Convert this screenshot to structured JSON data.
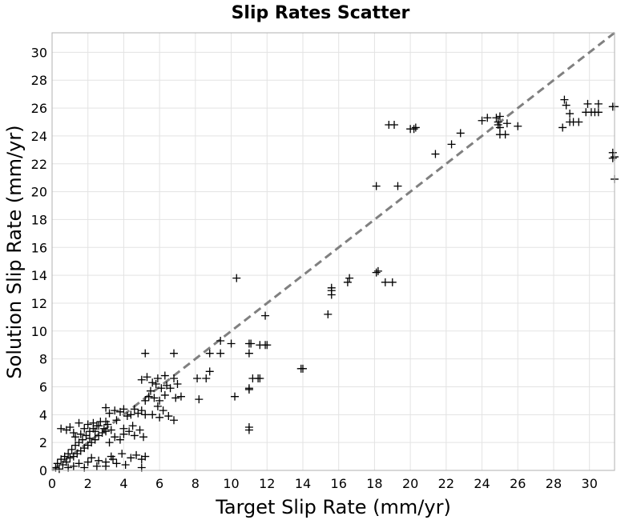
{
  "chart_data": {
    "type": "scatter",
    "title": "Slip Rates Scatter",
    "xlabel": "Target Slip Rate (mm/yr)",
    "ylabel": "Solution Slip Rate (mm/yr)",
    "xlim": [
      0,
      31.4
    ],
    "ylim": [
      0,
      31.4
    ],
    "xticks": [
      "0",
      "2",
      "4",
      "6",
      "8",
      "10",
      "12",
      "14",
      "16",
      "18",
      "20",
      "22",
      "24",
      "26",
      "28",
      "30"
    ],
    "yticks": [
      "0",
      "2",
      "4",
      "6",
      "8",
      "10",
      "12",
      "14",
      "16",
      "18",
      "20",
      "22",
      "24",
      "26",
      "28",
      "30"
    ],
    "grid": true,
    "reference_line": {
      "style": "dashed",
      "color": "#808080",
      "from": [
        0,
        0
      ],
      "to": [
        31.4,
        31.4
      ]
    },
    "marker": "+",
    "marker_color": "#000000",
    "points": [
      [
        0.2,
        0.2
      ],
      [
        0.3,
        0.5
      ],
      [
        0.4,
        0.1
      ],
      [
        0.5,
        0.8
      ],
      [
        0.6,
        0.4
      ],
      [
        0.7,
        1.0
      ],
      [
        0.8,
        0.6
      ],
      [
        0.9,
        1.2
      ],
      [
        1.0,
        0.9
      ],
      [
        1.1,
        1.5
      ],
      [
        1.2,
        1.0
      ],
      [
        1.3,
        1.8
      ],
      [
        1.4,
        1.2
      ],
      [
        1.5,
        2.0
      ],
      [
        1.6,
        1.4
      ],
      [
        1.7,
        2.2
      ],
      [
        1.8,
        1.6
      ],
      [
        1.9,
        2.5
      ],
      [
        2.0,
        1.8
      ],
      [
        2.1,
        2.8
      ],
      [
        2.2,
        2.0
      ],
      [
        2.3,
        3.0
      ],
      [
        2.4,
        2.2
      ],
      [
        2.5,
        3.2
      ],
      [
        2.6,
        2.5
      ],
      [
        2.7,
        3.5
      ],
      [
        2.8,
        2.7
      ],
      [
        2.9,
        3.0
      ],
      [
        3.0,
        2.8
      ],
      [
        3.1,
        3.3
      ],
      [
        0.5,
        3.0
      ],
      [
        0.8,
        2.9
      ],
      [
        1.0,
        3.1
      ],
      [
        1.2,
        2.7
      ],
      [
        1.5,
        3.4
      ],
      [
        1.8,
        3.0
      ],
      [
        2.0,
        3.3
      ],
      [
        2.3,
        3.4
      ],
      [
        2.6,
        3.2
      ],
      [
        3.0,
        4.5
      ],
      [
        3.2,
        4.1
      ],
      [
        3.5,
        4.3
      ],
      [
        3.8,
        4.2
      ],
      [
        4.0,
        4.4
      ],
      [
        4.2,
        3.9
      ],
      [
        4.4,
        4.0
      ],
      [
        4.6,
        4.4
      ],
      [
        4.8,
        4.1
      ],
      [
        5.0,
        4.3
      ],
      [
        5.2,
        4.0
      ],
      [
        3.0,
        0.6
      ],
      [
        3.3,
        1.0
      ],
      [
        3.6,
        0.5
      ],
      [
        3.9,
        1.2
      ],
      [
        4.1,
        0.4
      ],
      [
        4.4,
        0.9
      ],
      [
        4.7,
        1.1
      ],
      [
        5.0,
        0.8
      ],
      [
        5.2,
        1.0
      ],
      [
        5.0,
        0.2
      ],
      [
        2.5,
        0.3
      ],
      [
        2.0,
        0.6
      ],
      [
        1.8,
        0.2
      ],
      [
        2.2,
        0.9
      ],
      [
        2.6,
        0.7
      ],
      [
        3.0,
        0.3
      ],
      [
        3.4,
        0.8
      ],
      [
        1.5,
        0.5
      ],
      [
        1.2,
        0.3
      ],
      [
        0.9,
        0.2
      ],
      [
        3.2,
        2.0
      ],
      [
        3.5,
        2.4
      ],
      [
        3.8,
        2.2
      ],
      [
        4.0,
        2.6
      ],
      [
        4.3,
        2.8
      ],
      [
        4.6,
        2.5
      ],
      [
        4.9,
        2.9
      ],
      [
        5.1,
        2.4
      ],
      [
        4.0,
        3.0
      ],
      [
        4.5,
        3.2
      ],
      [
        5.0,
        6.5
      ],
      [
        5.3,
        6.7
      ],
      [
        5.6,
        6.3
      ],
      [
        5.9,
        6.6
      ],
      [
        6.3,
        6.8
      ],
      [
        5.5,
        5.7
      ],
      [
        5.8,
        6.2
      ],
      [
        6.1,
        5.9
      ],
      [
        6.4,
        6.1
      ],
      [
        5.2,
        5.0
      ],
      [
        5.4,
        5.3
      ],
      [
        5.7,
        5.2
      ],
      [
        6.0,
        5.0
      ],
      [
        6.3,
        5.4
      ],
      [
        5.9,
        4.6
      ],
      [
        6.2,
        4.3
      ],
      [
        5.6,
        4.0
      ],
      [
        6.5,
        3.9
      ],
      [
        6.8,
        3.6
      ],
      [
        6.0,
        3.8
      ],
      [
        5.2,
        8.4
      ],
      [
        6.8,
        8.4
      ],
      [
        6.8,
        6.6
      ],
      [
        6.6,
        5.9
      ],
      [
        6.9,
        5.2
      ],
      [
        7.0,
        6.2
      ],
      [
        7.2,
        5.3
      ],
      [
        8.1,
        6.6
      ],
      [
        8.2,
        5.1
      ],
      [
        8.6,
        6.6
      ],
      [
        8.8,
        7.1
      ],
      [
        8.8,
        8.4
      ],
      [
        9.4,
        8.4
      ],
      [
        9.4,
        9.3
      ],
      [
        10.0,
        9.1
      ],
      [
        10.2,
        5.3
      ],
      [
        10.3,
        13.8
      ],
      [
        11.0,
        9.1
      ],
      [
        11.0,
        8.4
      ],
      [
        11.1,
        9.1
      ],
      [
        11.0,
        5.9
      ],
      [
        11.0,
        5.8
      ],
      [
        11.0,
        3.1
      ],
      [
        11.0,
        2.9
      ],
      [
        11.2,
        6.6
      ],
      [
        11.5,
        6.6
      ],
      [
        11.6,
        6.6
      ],
      [
        11.6,
        9.0
      ],
      [
        11.9,
        9.0
      ],
      [
        11.9,
        11.1
      ],
      [
        12.0,
        9.0
      ],
      [
        13.9,
        7.3
      ],
      [
        14.0,
        7.3
      ],
      [
        15.4,
        11.2
      ],
      [
        15.6,
        12.6
      ],
      [
        15.6,
        12.9
      ],
      [
        15.6,
        13.1
      ],
      [
        16.5,
        13.5
      ],
      [
        16.6,
        13.8
      ],
      [
        18.1,
        14.2
      ],
      [
        18.2,
        14.3
      ],
      [
        18.1,
        20.4
      ],
      [
        18.6,
        13.5
      ],
      [
        18.8,
        24.8
      ],
      [
        19.0,
        13.5
      ],
      [
        19.1,
        24.8
      ],
      [
        19.3,
        20.4
      ],
      [
        20.0,
        24.5
      ],
      [
        20.2,
        24.5
      ],
      [
        20.3,
        24.6
      ],
      [
        21.4,
        22.7
      ],
      [
        22.3,
        23.4
      ],
      [
        22.8,
        24.2
      ],
      [
        24.0,
        25.1
      ],
      [
        24.3,
        25.3
      ],
      [
        24.8,
        25.3
      ],
      [
        24.9,
        24.8
      ],
      [
        25.0,
        24.6
      ],
      [
        24.9,
        25.0
      ],
      [
        25.0,
        24.1
      ],
      [
        25.0,
        25.4
      ],
      [
        25.3,
        24.1
      ],
      [
        25.4,
        24.9
      ],
      [
        26.0,
        24.7
      ],
      [
        28.5,
        24.6
      ],
      [
        28.6,
        26.6
      ],
      [
        28.7,
        26.2
      ],
      [
        28.9,
        25.6
      ],
      [
        28.9,
        25.0
      ],
      [
        29.1,
        25.0
      ],
      [
        29.4,
        25.0
      ],
      [
        29.8,
        25.7
      ],
      [
        29.9,
        26.3
      ],
      [
        30.1,
        25.7
      ],
      [
        30.3,
        25.7
      ],
      [
        30.5,
        25.7
      ],
      [
        30.5,
        26.3
      ],
      [
        31.3,
        26.1
      ],
      [
        31.4,
        26.1
      ],
      [
        31.3,
        22.8
      ],
      [
        31.4,
        22.5
      ],
      [
        31.3,
        22.4
      ],
      [
        31.4,
        20.9
      ],
      [
        3.0,
        3.5
      ],
      [
        3.3,
        2.9
      ],
      [
        3.6,
        3.6
      ],
      [
        2.4,
        2.8
      ],
      [
        2.1,
        2.3
      ],
      [
        1.6,
        2.6
      ],
      [
        1.3,
        2.4
      ]
    ]
  }
}
